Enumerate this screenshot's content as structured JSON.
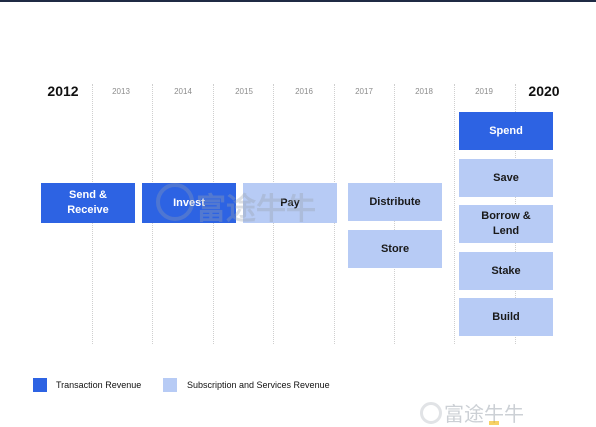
{
  "years": [
    "2012",
    "2013",
    "2014",
    "2015",
    "2016",
    "2017",
    "2018",
    "2019",
    "2020"
  ],
  "major_years": [
    "2012",
    "2020"
  ],
  "boxes": [
    {
      "label": "Send &\nReceive",
      "type": "tx"
    },
    {
      "label": "Invest",
      "type": "tx"
    },
    {
      "label": "Pay",
      "type": "sub"
    },
    {
      "label": "Distribute",
      "type": "sub"
    },
    {
      "label": "Store",
      "type": "sub"
    },
    {
      "label": "Spend",
      "type": "tx"
    },
    {
      "label": "Save",
      "type": "sub"
    },
    {
      "label": "Borrow &\nLend",
      "type": "sub"
    },
    {
      "label": "Stake",
      "type": "sub"
    },
    {
      "label": "Build",
      "type": "sub"
    }
  ],
  "legend": [
    {
      "label": "Transaction Revenue",
      "type": "tx"
    },
    {
      "label": "Subscription and Services Revenue",
      "type": "sub"
    }
  ],
  "watermark": {
    "center_text": "富途牛牛",
    "corner_text": "富途牛牛"
  },
  "colors": {
    "transaction": "#2d63e3",
    "subscription": "#b7cbf5",
    "header_rule": "#1f2a44"
  }
}
